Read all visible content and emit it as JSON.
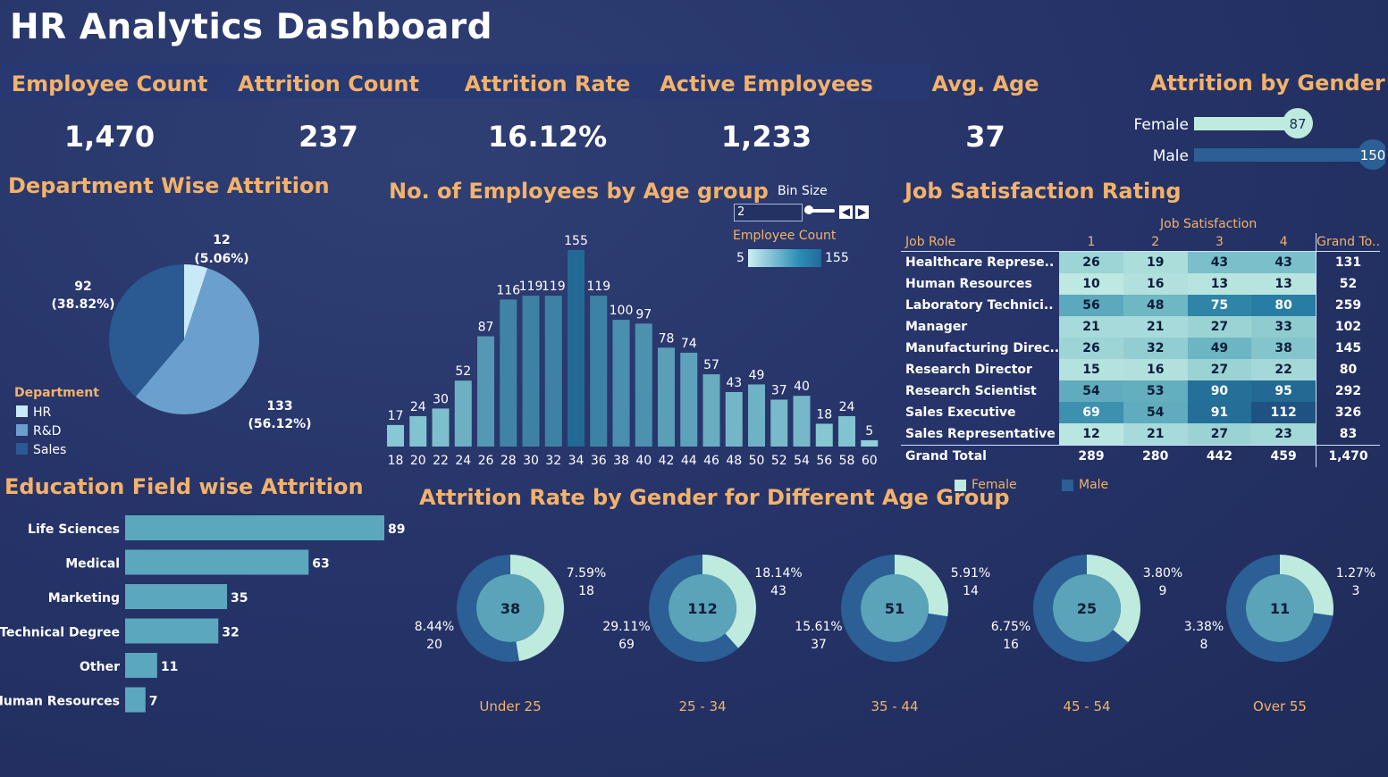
{
  "title": "HR Analytics Dashboard",
  "kpis": [
    {
      "label": "Employee Count",
      "value": "1,470"
    },
    {
      "label": "Attrition Count",
      "value": "237"
    },
    {
      "label": "Attrition Rate",
      "value": "16.12%"
    },
    {
      "label": "Active Employees",
      "value": "1,233"
    },
    {
      "label": "Avg. Age",
      "value": "37"
    }
  ],
  "colors": {
    "hr": "#c8e9f5",
    "rnd": "#6a9fce",
    "sales": "#2a5a91",
    "bar": "#2b8db5",
    "bar_light": "#8fd0d8",
    "female": "#bfeade",
    "male": "#2b5f95",
    "edu_bar": "#5ba7bd",
    "accent": "#f3b26b"
  },
  "chart_data": [
    {
      "id": "gender",
      "type": "bar",
      "title": "Attrition by Gender",
      "categories": [
        "Female",
        "Male"
      ],
      "values": [
        87,
        150
      ]
    },
    {
      "id": "department",
      "type": "pie",
      "title": "Department Wise Attrition",
      "legend_title": "Department",
      "categories": [
        "HR",
        "R&D",
        "Sales"
      ],
      "values": [
        12,
        133,
        92
      ],
      "labels": [
        {
          "value": "12",
          "pct": "(5.06%)"
        },
        {
          "value": "133",
          "pct": "(56.12%)"
        },
        {
          "value": "92",
          "pct": "(38.82%)"
        }
      ]
    },
    {
      "id": "age_group",
      "type": "bar",
      "title": "No. of Employees by Age group",
      "categories": [
        "18",
        "20",
        "22",
        "24",
        "26",
        "28",
        "30",
        "32",
        "34",
        "36",
        "38",
        "40",
        "42",
        "44",
        "46",
        "48",
        "50",
        "52",
        "54",
        "56",
        "58",
        "60"
      ],
      "values": [
        17,
        24,
        30,
        52,
        87,
        116,
        119,
        119,
        155,
        119,
        100,
        97,
        78,
        74,
        57,
        43,
        49,
        37,
        40,
        18,
        24,
        5
      ],
      "bin_size_label": "Bin Size",
      "bin_size_value": "2",
      "color_legend_title": "Employee Count",
      "color_min": "5",
      "color_max": "155"
    },
    {
      "id": "job_satisfaction",
      "type": "heatmap",
      "title": "Job Satisfaction Rating",
      "column_header": "Job Satisfaction",
      "row_header": "Job Role",
      "columns": [
        "1",
        "2",
        "3",
        "4"
      ],
      "total_header": "Grand To..",
      "rows": [
        {
          "role": "Healthcare Represe..",
          "values": [
            26,
            19,
            43,
            43
          ],
          "total": "131"
        },
        {
          "role": "Human Resources",
          "values": [
            10,
            16,
            13,
            13
          ],
          "total": "52"
        },
        {
          "role": "Laboratory Technici..",
          "values": [
            56,
            48,
            75,
            80
          ],
          "total": "259"
        },
        {
          "role": "Manager",
          "values": [
            21,
            21,
            27,
            33
          ],
          "total": "102"
        },
        {
          "role": "Manufacturing Direc..",
          "values": [
            26,
            32,
            49,
            38
          ],
          "total": "145"
        },
        {
          "role": "Research Director",
          "values": [
            15,
            16,
            27,
            22
          ],
          "total": "80"
        },
        {
          "role": "Research Scientist",
          "values": [
            54,
            53,
            90,
            95
          ],
          "total": "292"
        },
        {
          "role": "Sales Executive",
          "values": [
            69,
            54,
            91,
            112
          ],
          "total": "326"
        },
        {
          "role": "Sales Representative",
          "values": [
            12,
            21,
            27,
            23
          ],
          "total": "83"
        }
      ],
      "grand_total": {
        "label": "Grand Total",
        "values": [
          "289",
          "280",
          "442",
          "459"
        ],
        "total": "1,470"
      }
    },
    {
      "id": "education",
      "type": "bar",
      "title": "Education Field wise Attrition",
      "categories": [
        "Life Sciences",
        "Medical",
        "Marketing",
        "Technical Degree",
        "Other",
        "Human Resources"
      ],
      "values": [
        89,
        63,
        35,
        32,
        11,
        7
      ]
    },
    {
      "id": "gender_age",
      "type": "pie",
      "title": "Attrition Rate by Gender for Different Age Group",
      "legend": [
        "Female",
        "Male"
      ],
      "groups": [
        {
          "name": "Under 25",
          "total": "38",
          "female": 18,
          "male": 20,
          "female_pct": "7.59%",
          "male_pct": "8.44%"
        },
        {
          "name": "25 - 34",
          "total": "112",
          "female": 43,
          "male": 69,
          "female_pct": "18.14%",
          "male_pct": "29.11%"
        },
        {
          "name": "35 - 44",
          "total": "51",
          "female": 14,
          "male": 37,
          "female_pct": "5.91%",
          "male_pct": "15.61%"
        },
        {
          "name": "45 - 54",
          "total": "25",
          "female": 9,
          "male": 16,
          "female_pct": "3.80%",
          "male_pct": "6.75%"
        },
        {
          "name": "Over 55",
          "total": "11",
          "female": 3,
          "male": 8,
          "female_pct": "1.27%",
          "male_pct": "3.38%"
        }
      ]
    }
  ]
}
